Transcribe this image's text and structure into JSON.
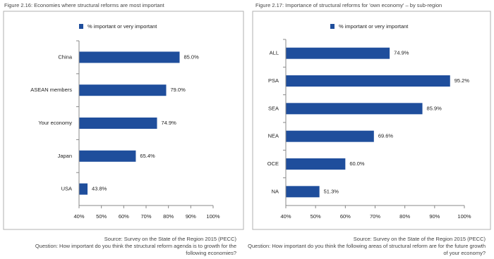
{
  "chart_data": [
    {
      "type": "barh",
      "title": "Figure 2.16: Economies where structural reforms are most important",
      "categories": [
        "China",
        "ASEAN members",
        "Your economy",
        "Japan",
        "USA"
      ],
      "series": [
        {
          "name": "% important or very important",
          "color": "#1f4e9c",
          "values": [
            85.0,
            79.0,
            74.9,
            65.4,
            43.8
          ],
          "value_labels": [
            "85.0%",
            "79.0%",
            "74.9%",
            "65.4%",
            "43.8%"
          ]
        }
      ],
      "xlim": [
        40,
        100
      ],
      "xticks": [
        {
          "value": 40,
          "label": "40%"
        },
        {
          "value": 50,
          "label": "50%"
        },
        {
          "value": 60,
          "label": "60%"
        },
        {
          "value": 70,
          "label": "70%"
        },
        {
          "value": 80,
          "label": "80%"
        },
        {
          "value": 90,
          "label": "90%"
        },
        {
          "value": 100,
          "label": "100%"
        }
      ],
      "source": "Source: Survey on the State of the Region 2015 (PECC)",
      "question": [
        "Question: How important do you think the structural reform agenda is to growth for the",
        "following economies?"
      ]
    },
    {
      "type": "barh",
      "title": "Figure 2.17: Importance of structural reforms for 'own economy' – by sub-region",
      "categories": [
        "ALL",
        "PSA",
        "SEA",
        "NEA",
        "OCE",
        "NA"
      ],
      "series": [
        {
          "name": "% important or very important",
          "color": "#1f4e9c",
          "values": [
            74.9,
            95.2,
            85.9,
            69.6,
            60.0,
            51.3
          ],
          "value_labels": [
            "74.9%",
            "95.2%",
            "85.9%",
            "69.6%",
            "60.0%",
            "51.3%"
          ]
        }
      ],
      "xlim": [
        40,
        100
      ],
      "xticks": [
        {
          "value": 40,
          "label": "40%"
        },
        {
          "value": 50,
          "label": "50%"
        },
        {
          "value": 60,
          "label": "60%"
        },
        {
          "value": 70,
          "label": "70%"
        },
        {
          "value": 80,
          "label": "80%"
        },
        {
          "value": 90,
          "label": "90%"
        },
        {
          "value": 100,
          "label": "100%"
        }
      ],
      "source": "Source: Survey on the State of the Region 2015 (PECC)",
      "question": [
        "Question: How important do you think the following areas of structural reform are for the future growth",
        "of your economy?"
      ]
    }
  ]
}
